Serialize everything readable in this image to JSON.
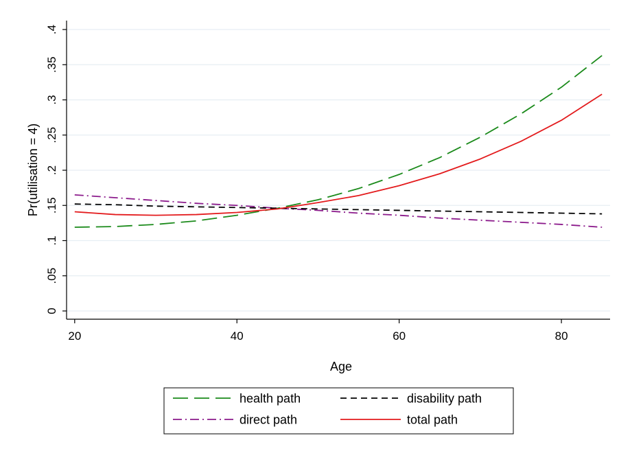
{
  "chart_data": {
    "type": "line",
    "title": "",
    "xlabel": "Age",
    "ylabel": "Pr(utilisation = 4)",
    "xlim": [
      19,
      86
    ],
    "ylim": [
      0,
      0.4
    ],
    "xticks": [
      20,
      40,
      60,
      80
    ],
    "xtick_labels": [
      "20",
      "40",
      "60",
      "80"
    ],
    "yticks": [
      0,
      0.05,
      0.1,
      0.15,
      0.2,
      0.25,
      0.3,
      0.35,
      0.4
    ],
    "ytick_labels": [
      "0",
      ".05",
      ".1",
      ".15",
      ".2",
      ".25",
      ".3",
      ".35",
      ".4"
    ],
    "grid": "horizontal",
    "legend_position": "bottom",
    "x": [
      20,
      25,
      30,
      35,
      40,
      45,
      50,
      55,
      60,
      65,
      70,
      75,
      80,
      85
    ],
    "series": [
      {
        "name": "health path",
        "color": "#1a8a1a",
        "dash": "long-dash",
        "values": [
          0.119,
          0.12,
          0.123,
          0.128,
          0.136,
          0.146,
          0.158,
          0.174,
          0.194,
          0.218,
          0.247,
          0.28,
          0.318,
          0.363
        ]
      },
      {
        "name": "disability path",
        "color": "#000000",
        "dash": "short-dash",
        "values": [
          0.152,
          0.151,
          0.149,
          0.148,
          0.147,
          0.146,
          0.145,
          0.144,
          0.143,
          0.142,
          0.141,
          0.14,
          0.139,
          0.138
        ]
      },
      {
        "name": "direct path",
        "color": "#8b1a8b",
        "dash": "dash-dot",
        "values": [
          0.165,
          0.161,
          0.157,
          0.153,
          0.15,
          0.146,
          0.143,
          0.139,
          0.136,
          0.132,
          0.129,
          0.126,
          0.123,
          0.119
        ]
      },
      {
        "name": "total path",
        "color": "#e31a1c",
        "dash": "solid",
        "values": [
          0.141,
          0.137,
          0.136,
          0.137,
          0.14,
          0.145,
          0.154,
          0.164,
          0.178,
          0.195,
          0.216,
          0.241,
          0.271,
          0.308
        ]
      }
    ],
    "legend_order": [
      0,
      1,
      2,
      3
    ]
  }
}
